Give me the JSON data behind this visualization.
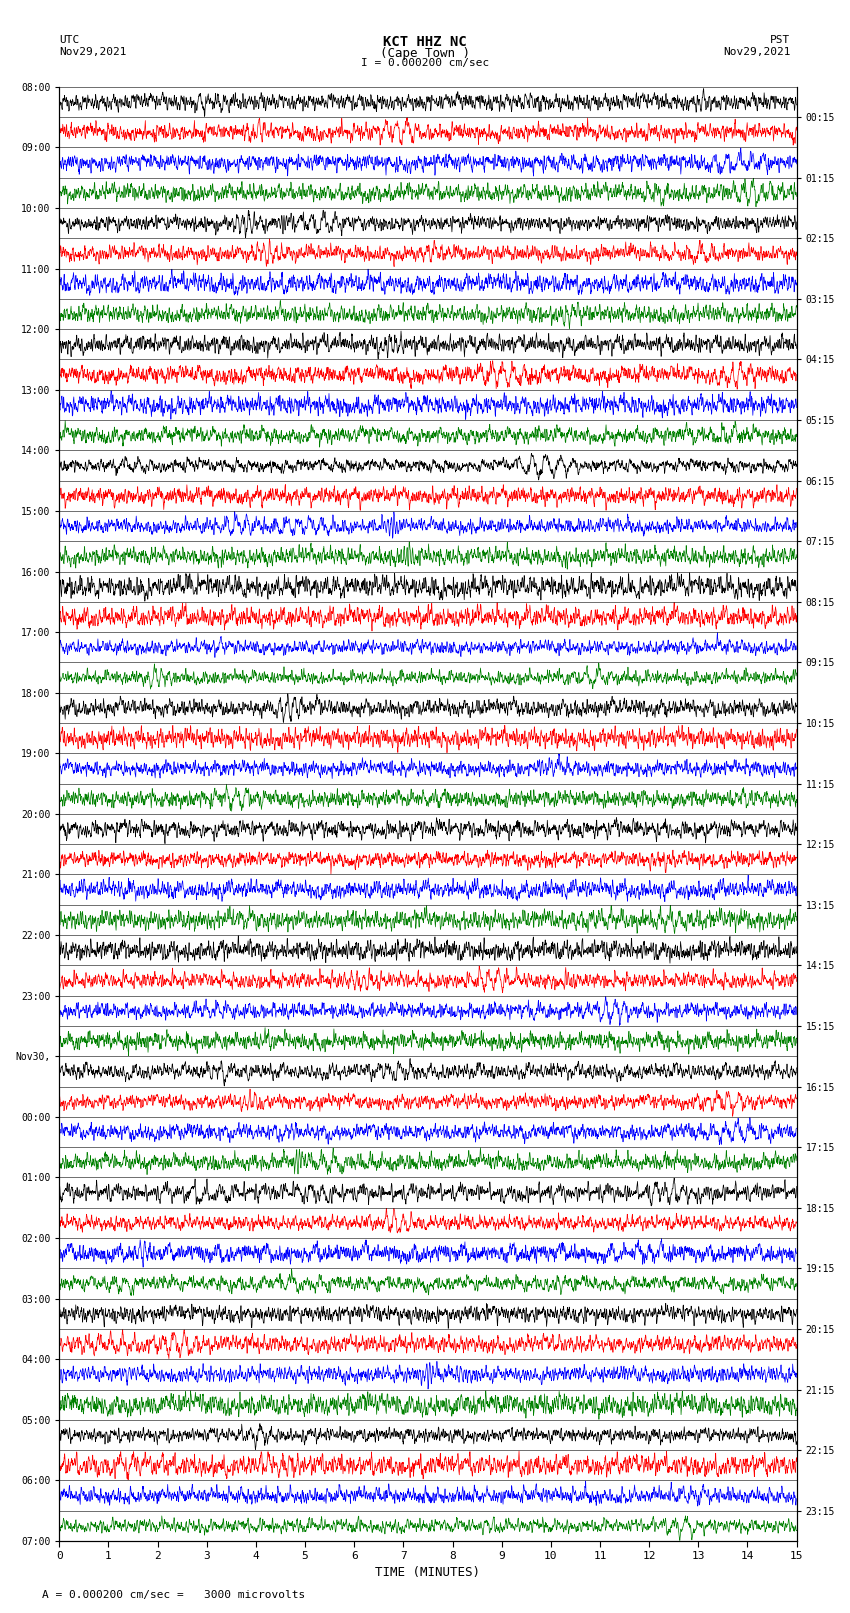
{
  "title_line1": "KCT HHZ NC",
  "title_line2": "(Cape Town )",
  "scale_label": "I = 0.000200 cm/sec",
  "utc_label": "UTC",
  "utc_date": "Nov29,2021",
  "pst_label": "PST",
  "pst_date": "Nov29,2021",
  "bottom_note": "A = 0.000200 cm/sec =   3000 microvolts",
  "xlabel": "TIME (MINUTES)",
  "left_times": [
    "08:00",
    "09:00",
    "10:00",
    "11:00",
    "12:00",
    "13:00",
    "14:00",
    "15:00",
    "16:00",
    "17:00",
    "18:00",
    "19:00",
    "20:00",
    "21:00",
    "22:00",
    "23:00",
    "Nov30,",
    "00:00",
    "01:00",
    "02:00",
    "03:00",
    "04:00",
    "05:00",
    "06:00",
    "07:00"
  ],
  "right_times": [
    "00:15",
    "01:15",
    "02:15",
    "03:15",
    "04:15",
    "05:15",
    "06:15",
    "07:15",
    "08:15",
    "09:15",
    "10:15",
    "11:15",
    "12:15",
    "13:15",
    "14:15",
    "15:15",
    "16:15",
    "17:15",
    "18:15",
    "19:15",
    "20:15",
    "21:15",
    "22:15",
    "23:15"
  ],
  "n_rows": 48,
  "n_cols": 3000,
  "minutes_per_row": 15,
  "colors": [
    "black",
    "red",
    "blue",
    "green"
  ],
  "fig_width": 8.5,
  "fig_height": 16.13,
  "bg_color": "white",
  "trace_amplitude": 0.48,
  "seed": 12345
}
